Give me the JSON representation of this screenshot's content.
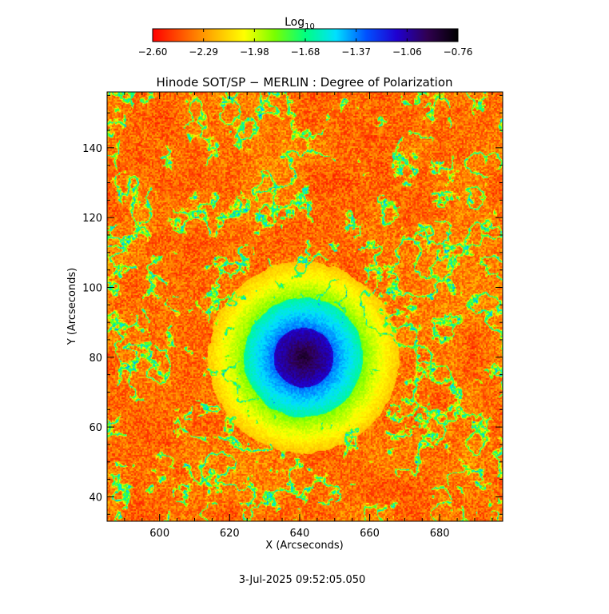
{
  "chart_data": {
    "type": "heatmap",
    "title": "Hinode SOT/SP − MERLIN : Degree of Polarization",
    "xlabel": "X (Arcseconds)",
    "ylabel": "Y (Arcseconds)",
    "xlim": [
      585,
      698
    ],
    "ylim": [
      33,
      156
    ],
    "x_ticks": [
      600,
      620,
      640,
      660,
      680
    ],
    "y_ticks": [
      40,
      60,
      80,
      100,
      120,
      140
    ],
    "colorbar": {
      "title_main": "Log",
      "title_sub": "10",
      "range": [
        -2.6,
        -0.76
      ],
      "tick_labels": [
        "−2.60",
        "−2.29",
        "−1.98",
        "−1.68",
        "−1.37",
        "−1.06",
        "−0.76"
      ],
      "colormap": [
        "#ff0000",
        "#ff5a00",
        "#ffb400",
        "#ffff00",
        "#78ff00",
        "#00ff80",
        "#00e0ff",
        "#0050ff",
        "#2000d0",
        "#300050",
        "#000000"
      ]
    },
    "features": {
      "sunspot_center": [
        641,
        80
      ],
      "umbra_radius": 8.5,
      "penumbra_radius": 17
    },
    "footer": "3-Jul-2025 09:52:05.050"
  }
}
